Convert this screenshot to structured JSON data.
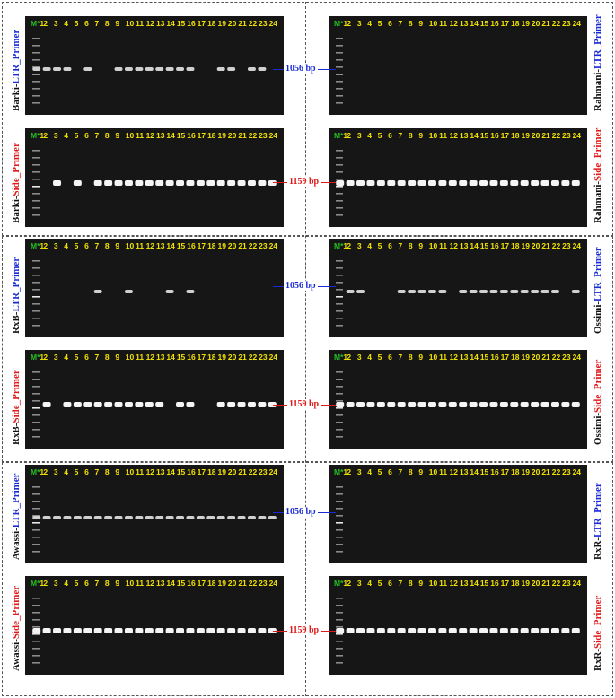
{
  "bp_labels": {
    "ltr": "1056 bp",
    "side": "1159 bp"
  },
  "lane_labels": [
    "M*1",
    "2",
    "3",
    "4",
    "5",
    "6",
    "7",
    "8",
    "9",
    "10",
    "11",
    "12",
    "13",
    "14",
    "15",
    "16",
    "17",
    "18",
    "19",
    "20",
    "21",
    "22",
    "23",
    "24"
  ],
  "colors": {
    "ltr": "#1a2bd6",
    "side": "#e01a1a",
    "lane_marker": "#22c21e",
    "lane_text": "#f2e200"
  },
  "panels": [
    {
      "id": "barki-ltr",
      "sample": "Barki-",
      "primer": "LTR_Primer",
      "type": "ltr",
      "bands": [
        1,
        1,
        1,
        1,
        0,
        1,
        0,
        0,
        1,
        1,
        1,
        1,
        1,
        1,
        1,
        1,
        0,
        0,
        1,
        1,
        0,
        1,
        1,
        0
      ]
    },
    {
      "id": "rahmani-ltr",
      "sample": "Rahmani-",
      "primer": "LTR_Primer",
      "type": "ltr",
      "bands": [
        0,
        0,
        0,
        0,
        0,
        0,
        0,
        0,
        0,
        0,
        0,
        0,
        0,
        0,
        0,
        0,
        0,
        0,
        0,
        0,
        0,
        0,
        0,
        0
      ]
    },
    {
      "id": "barki-side",
      "sample": "Barki-",
      "primer": "Side_Primer",
      "type": "side",
      "bands": [
        0,
        0,
        1,
        0,
        1,
        0,
        1,
        1,
        1,
        1,
        1,
        1,
        1,
        1,
        1,
        1,
        1,
        1,
        1,
        1,
        1,
        1,
        1,
        1
      ]
    },
    {
      "id": "rahmani-side",
      "sample": "Rahmani-",
      "primer": "Side_Primer",
      "type": "side",
      "bands": [
        1,
        1,
        1,
        1,
        1,
        1,
        1,
        1,
        1,
        1,
        1,
        1,
        1,
        1,
        1,
        1,
        1,
        1,
        1,
        1,
        1,
        1,
        1,
        1
      ]
    },
    {
      "id": "rxb-ltr",
      "sample": "RxB-",
      "primer": "LTR_Primer",
      "type": "ltr",
      "bands": [
        0,
        0,
        0,
        0,
        0,
        0,
        1,
        0,
        0,
        1,
        0,
        0,
        0,
        1,
        0,
        1,
        0,
        0,
        0,
        0,
        0,
        0,
        0,
        0
      ]
    },
    {
      "id": "ossimi-ltr",
      "sample": "Ossimi-",
      "primer": "LTR_Primer",
      "type": "ltr",
      "bands": [
        0,
        1,
        1,
        0,
        0,
        0,
        1,
        1,
        1,
        1,
        1,
        0,
        1,
        1,
        1,
        1,
        1,
        1,
        1,
        1,
        1,
        1,
        0,
        1
      ]
    },
    {
      "id": "rxb-side",
      "sample": "RxB-",
      "primer": "Side_Primer",
      "type": "side",
      "bands": [
        0,
        1,
        0,
        1,
        1,
        1,
        1,
        1,
        1,
        1,
        1,
        1,
        1,
        0,
        1,
        1,
        0,
        0,
        1,
        1,
        1,
        1,
        1,
        1
      ]
    },
    {
      "id": "ossimi-side",
      "sample": "Ossimi-",
      "primer": "Side_Primer",
      "type": "side",
      "bands": [
        1,
        1,
        1,
        1,
        1,
        1,
        1,
        1,
        1,
        1,
        1,
        1,
        1,
        1,
        1,
        1,
        1,
        1,
        1,
        1,
        1,
        1,
        1,
        1
      ]
    },
    {
      "id": "awassi-ltr",
      "sample": "Awassi-",
      "primer": "LTR_Primer",
      "type": "ltr",
      "bands": [
        1,
        1,
        1,
        1,
        1,
        1,
        1,
        1,
        1,
        1,
        1,
        1,
        1,
        1,
        1,
        1,
        1,
        1,
        1,
        1,
        1,
        1,
        1,
        1
      ]
    },
    {
      "id": "rxr-ltr",
      "sample": "RxR-",
      "primer": "LTR_Primer",
      "type": "ltr",
      "bands": [
        0,
        0,
        0,
        0,
        0,
        0,
        0,
        0,
        0,
        0,
        0,
        0,
        0,
        0,
        0,
        0,
        0,
        0,
        0,
        0,
        0,
        0,
        0,
        0
      ]
    },
    {
      "id": "awassi-side",
      "sample": "Awassi-",
      "primer": "Side_Primer",
      "type": "side",
      "bands": [
        1,
        1,
        1,
        1,
        1,
        1,
        1,
        1,
        1,
        1,
        1,
        1,
        1,
        1,
        1,
        1,
        1,
        1,
        1,
        1,
        1,
        1,
        1,
        1
      ]
    },
    {
      "id": "rxr-side",
      "sample": "RxR-",
      "primer": "Side_Primer",
      "type": "side",
      "bands": [
        1,
        1,
        1,
        1,
        1,
        1,
        1,
        1,
        1,
        1,
        1,
        1,
        1,
        1,
        1,
        1,
        1,
        1,
        1,
        1,
        1,
        1,
        1,
        1
      ]
    }
  ]
}
